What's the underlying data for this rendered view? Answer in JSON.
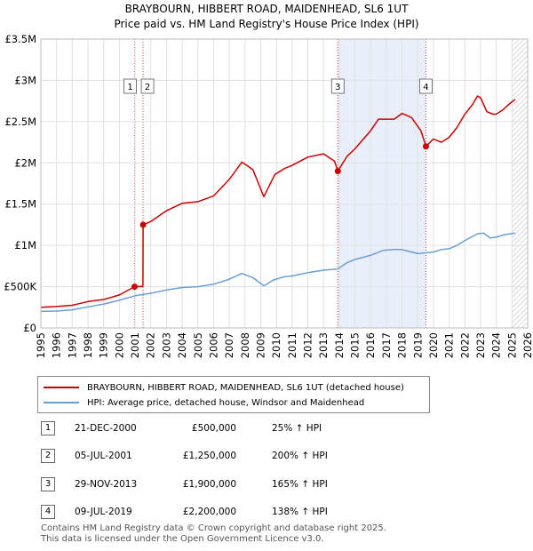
{
  "title": "BRAYBOURN, HIBBERT ROAD, MAIDENHEAD, SL6 1UT",
  "subtitle": "Price paid vs. HM Land Registry's House Price Index (HPI)",
  "colors": {
    "property": "#cc0000",
    "hpi": "#6a9fd4",
    "shade": "#e8eefa",
    "grid": "#e0e0e0"
  },
  "legend": {
    "property": "BRAYBOURN, HIBBERT ROAD, MAIDENHEAD, SL6 1UT (detached house)",
    "hpi": "HPI: Average price, detached house, Windsor and Maidenhead"
  },
  "sales": [
    {
      "num": "1",
      "date": "21-DEC-2000",
      "price": "£500,000",
      "hpi": "25% ↑ HPI"
    },
    {
      "num": "2",
      "date": "05-JUL-2001",
      "price": "£1,250,000",
      "hpi": "200% ↑ HPI"
    },
    {
      "num": "3",
      "date": "29-NOV-2013",
      "price": "£1,900,000",
      "hpi": "165% ↑ HPI"
    },
    {
      "num": "4",
      "date": "09-JUL-2019",
      "price": "£2,200,000",
      "hpi": "138% ↑ HPI"
    }
  ],
  "footer": {
    "line1": "Contains HM Land Registry data © Crown copyright and database right 2025.",
    "line2": "This data is licensed under the Open Government Licence v3.0."
  },
  "chart_data": {
    "type": "line",
    "title": "BRAYBOURN, HIBBERT ROAD, MAIDENHEAD, SL6 1UT",
    "subtitle": "Price paid vs. HM Land Registry's House Price Index (HPI)",
    "xlim": [
      1995,
      2026
    ],
    "ylim": [
      0,
      3500000
    ],
    "x_ticks": [
      "1995",
      "1996",
      "1997",
      "1998",
      "1999",
      "2000",
      "2001",
      "2002",
      "2003",
      "2004",
      "2005",
      "2006",
      "2007",
      "2008",
      "2009",
      "2010",
      "2011",
      "2012",
      "2013",
      "2014",
      "2015",
      "2016",
      "2017",
      "2018",
      "2019",
      "2020",
      "2021",
      "2022",
      "2023",
      "2024",
      "2025",
      "2026"
    ],
    "y_ticks": [
      {
        "value": 0,
        "label": "£0"
      },
      {
        "value": 500000,
        "label": "£500K"
      },
      {
        "value": 1000000,
        "label": "£1M"
      },
      {
        "value": 1500000,
        "label": "£1.5M"
      },
      {
        "value": 2000000,
        "label": "£2M"
      },
      {
        "value": 2500000,
        "label": "£2.5M"
      },
      {
        "value": 3000000,
        "label": "£3M"
      },
      {
        "value": 3500000,
        "label": "£3.5M"
      }
    ],
    "shaded_period": [
      2013.91,
      2019.52
    ],
    "forecast_from": 2025.0,
    "series": [
      {
        "name": "BRAYBOURN, HIBBERT ROAD, MAIDENHEAD, SL6 1UT (detached house)",
        "points": [
          [
            1995,
            250000
          ],
          [
            1996,
            260000
          ],
          [
            1997,
            275000
          ],
          [
            1998,
            320000
          ],
          [
            1999,
            345000
          ],
          [
            2000,
            400000
          ],
          [
            2000.97,
            500000
          ],
          [
            2001.5,
            505000
          ],
          [
            2001.51,
            1250000
          ],
          [
            2002,
            1290000
          ],
          [
            2003,
            1420000
          ],
          [
            2004,
            1510000
          ],
          [
            2005,
            1530000
          ],
          [
            2006,
            1600000
          ],
          [
            2007,
            1800000
          ],
          [
            2007.8,
            2010000
          ],
          [
            2008.5,
            1920000
          ],
          [
            2009.2,
            1590000
          ],
          [
            2009.9,
            1860000
          ],
          [
            2010.5,
            1930000
          ],
          [
            2011,
            1970000
          ],
          [
            2012,
            2070000
          ],
          [
            2013,
            2110000
          ],
          [
            2013.7,
            2020000
          ],
          [
            2013.91,
            1900000
          ],
          [
            2014.5,
            2080000
          ],
          [
            2015,
            2170000
          ],
          [
            2016,
            2390000
          ],
          [
            2016.5,
            2530000
          ],
          [
            2017.5,
            2530000
          ],
          [
            2018,
            2600000
          ],
          [
            2018.6,
            2550000
          ],
          [
            2019.2,
            2390000
          ],
          [
            2019.52,
            2200000
          ],
          [
            2020,
            2290000
          ],
          [
            2020.5,
            2250000
          ],
          [
            2021,
            2310000
          ],
          [
            2021.5,
            2430000
          ],
          [
            2022,
            2590000
          ],
          [
            2022.5,
            2710000
          ],
          [
            2022.8,
            2810000
          ],
          [
            2023,
            2790000
          ],
          [
            2023.4,
            2620000
          ],
          [
            2023.8,
            2590000
          ],
          [
            2024,
            2590000
          ],
          [
            2024.4,
            2640000
          ],
          [
            2024.8,
            2710000
          ],
          [
            2025.2,
            2770000
          ]
        ]
      },
      {
        "name": "HPI: Average price, detached house, Windsor and Maidenhead",
        "points": [
          [
            1995,
            200000
          ],
          [
            1996,
            205000
          ],
          [
            1997,
            220000
          ],
          [
            1998,
            255000
          ],
          [
            1999,
            290000
          ],
          [
            2000,
            335000
          ],
          [
            2001,
            390000
          ],
          [
            2002,
            420000
          ],
          [
            2003,
            460000
          ],
          [
            2004,
            490000
          ],
          [
            2005,
            500000
          ],
          [
            2006,
            530000
          ],
          [
            2007,
            590000
          ],
          [
            2007.8,
            660000
          ],
          [
            2008.5,
            610000
          ],
          [
            2009.2,
            510000
          ],
          [
            2009.8,
            580000
          ],
          [
            2010.5,
            620000
          ],
          [
            2011,
            630000
          ],
          [
            2012,
            670000
          ],
          [
            2013,
            700000
          ],
          [
            2013.91,
            715000
          ],
          [
            2014.5,
            790000
          ],
          [
            2015,
            830000
          ],
          [
            2016,
            880000
          ],
          [
            2016.8,
            940000
          ],
          [
            2017.5,
            950000
          ],
          [
            2018,
            950000
          ],
          [
            2018.5,
            925000
          ],
          [
            2019,
            900000
          ],
          [
            2019.5,
            910000
          ],
          [
            2020,
            920000
          ],
          [
            2020.5,
            950000
          ],
          [
            2021,
            960000
          ],
          [
            2021.5,
            1000000
          ],
          [
            2022,
            1060000
          ],
          [
            2022.8,
            1140000
          ],
          [
            2023.2,
            1150000
          ],
          [
            2023.6,
            1090000
          ],
          [
            2024,
            1100000
          ],
          [
            2024.5,
            1130000
          ],
          [
            2025.2,
            1150000
          ]
        ]
      }
    ],
    "sale_markers": [
      {
        "label": "1",
        "x": 2000.97,
        "y": 500000
      },
      {
        "label": "2",
        "x": 2001.51,
        "y": 1250000
      },
      {
        "label": "3",
        "x": 2013.91,
        "y": 1900000
      },
      {
        "label": "4",
        "x": 2019.52,
        "y": 2200000
      }
    ]
  }
}
